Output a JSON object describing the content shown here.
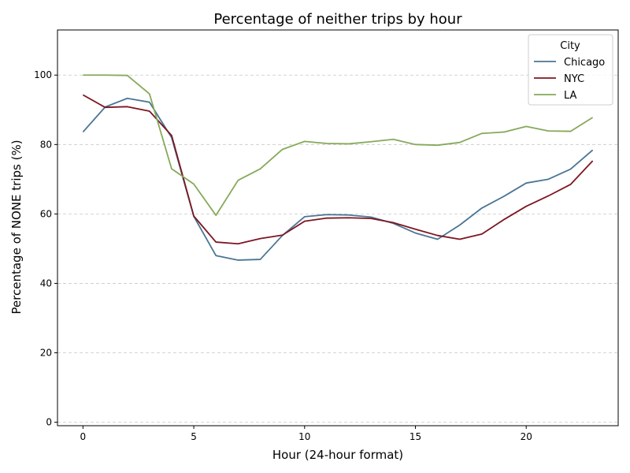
{
  "chart_data": {
    "type": "line",
    "title": "Percentage of neither trips by hour",
    "xlabel": "Hour (24-hour format)",
    "ylabel": "Percentage of NONE trips (%)",
    "x": [
      0,
      1,
      2,
      3,
      4,
      5,
      6,
      7,
      8,
      9,
      10,
      11,
      12,
      13,
      14,
      15,
      16,
      17,
      18,
      19,
      20,
      21,
      22,
      23
    ],
    "xlim": [
      -1.15,
      24.15
    ],
    "ylim": [
      -1,
      113
    ],
    "xticks": [
      0,
      5,
      10,
      15,
      20
    ],
    "yticks": [
      0,
      20,
      40,
      60,
      80,
      100
    ],
    "grid": "y-dashed",
    "legend": {
      "title": "City",
      "placement": "top-right"
    },
    "series": [
      {
        "name": "Chicago",
        "color": "#4a7595",
        "values": [
          83.6,
          90.8,
          93.3,
          92.2,
          82.0,
          59.3,
          48.0,
          46.7,
          46.9,
          53.8,
          59.2,
          59.8,
          59.7,
          59.1,
          57.3,
          54.5,
          52.7,
          56.8,
          61.7,
          65.1,
          68.9,
          70.0,
          72.9,
          78.4
        ]
      },
      {
        "name": "NYC",
        "color": "#7d1622",
        "values": [
          94.3,
          90.7,
          90.9,
          89.6,
          82.6,
          59.4,
          51.9,
          51.4,
          52.9,
          53.9,
          57.9,
          58.8,
          58.9,
          58.7,
          57.5,
          55.6,
          53.8,
          52.7,
          54.2,
          58.4,
          62.2,
          65.2,
          68.5,
          75.3
        ]
      },
      {
        "name": "LA",
        "color": "#86a95a",
        "values": [
          100.0,
          100.0,
          99.9,
          94.6,
          73.0,
          68.6,
          59.6,
          69.7,
          73.0,
          78.6,
          80.9,
          80.3,
          80.2,
          80.8,
          81.5,
          80.0,
          79.8,
          80.6,
          83.2,
          83.6,
          85.2,
          83.9,
          83.8,
          87.8
        ]
      }
    ]
  }
}
